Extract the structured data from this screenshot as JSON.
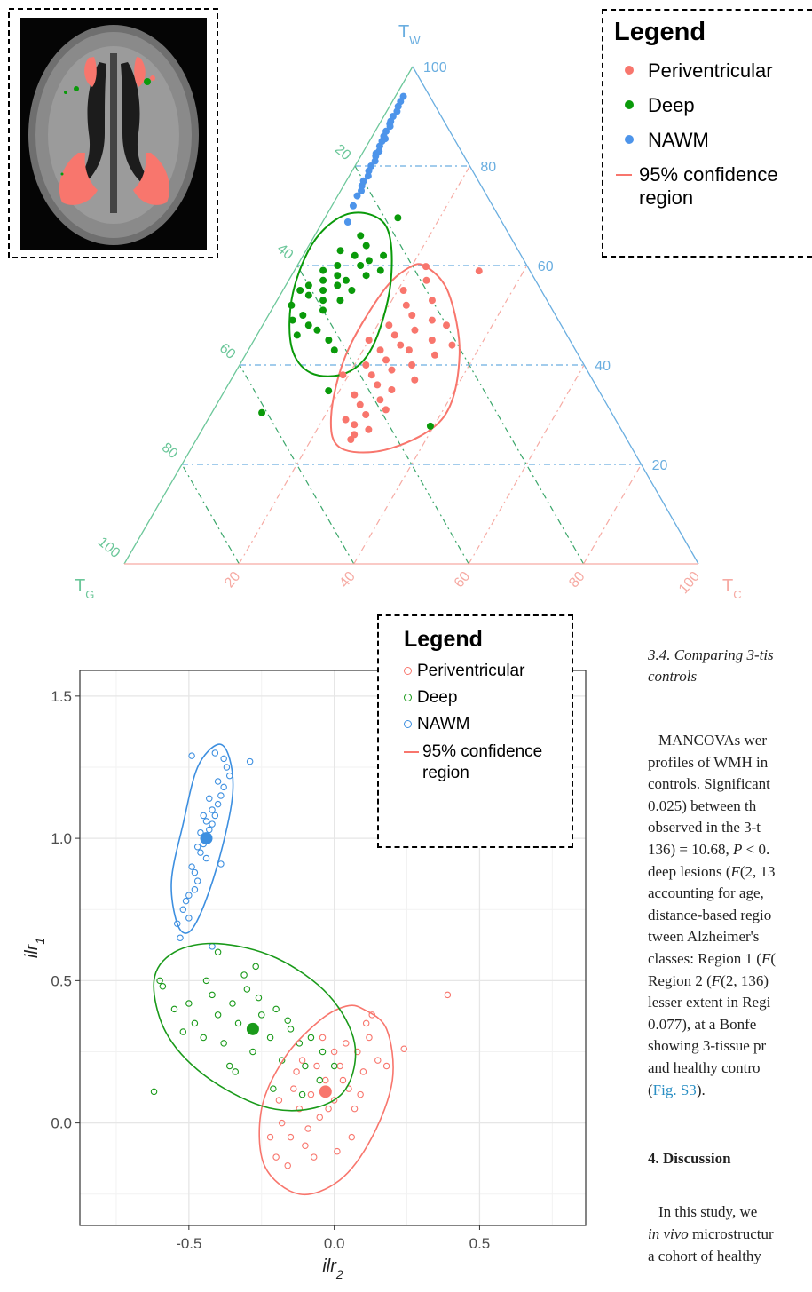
{
  "chart_data": [
    {
      "type": "ternary",
      "axes": [
        {
          "label": {
            "text": "T",
            "sub": "W"
          },
          "color": "#6aaee0",
          "ticks": [
            20,
            40,
            60,
            80,
            100
          ]
        },
        {
          "label": {
            "text": "T",
            "sub": "G"
          },
          "color": "#6cc79a",
          "ticks": [
            20,
            40,
            60,
            80,
            100
          ]
        },
        {
          "label": {
            "text": "T",
            "sub": "C"
          },
          "color": "#f6aaa3",
          "ticks": [
            20,
            40,
            60,
            80,
            100
          ]
        }
      ],
      "legend": {
        "title": "Legend",
        "region_label": "95% confidence region"
      },
      "series": [
        {
          "name": "Periventricular",
          "color": "#f8766d",
          "tw": [
            59.8,
            57,
            55,
            53,
            52,
            50,
            49,
            48,
            47,
            46,
            45,
            45,
            44,
            43,
            43,
            42,
            41,
            40,
            40,
            39,
            38,
            37,
            36,
            35,
            34,
            33,
            32,
            31,
            30,
            29,
            28,
            27,
            26,
            25,
            58.9,
            48,
            38,
            44
          ],
          "tc": [
            22.5,
            24,
            21,
            27,
            23,
            25,
            29,
            22,
            27,
            24,
            31,
            20,
            26,
            28,
            23,
            33,
            25,
            22,
            30,
            27,
            24,
            32,
            26,
            29,
            23,
            28,
            25,
            30,
            27,
            24,
            26,
            29,
            27,
            26.9,
            32.2,
            32,
            19,
            35
          ],
          "confidence_region": {
            "tw": [
              59.8,
              54.5,
              42,
              29.5,
              23.2,
              23.2,
              29.5,
              42,
              54.5,
              59.5
            ],
            "tc": [
              22.5,
              29.1,
              37.3,
              40.8,
              34.7,
              26.2,
              21.2,
              17.5,
              17.5,
              19.6
            ]
          }
        },
        {
          "name": "Deep",
          "color": "#0a9a0a",
          "tw": [
            69.6,
            66,
            64,
            63,
            62,
            61,
            60,
            60,
            59,
            58,
            58,
            57,
            57,
            56,
            56,
            55,
            55,
            54,
            53,
            53,
            52,
            51,
            50,
            49,
            48,
            47,
            46,
            45,
            43,
            34.8,
            30.4,
            27.7,
            62,
            59,
            55
          ],
          "tc": [
            12.7,
            8,
            10,
            6,
            9,
            12,
            7,
            11,
            5,
            8,
            13,
            6,
            10,
            4,
            9,
            7,
            12,
            5,
            8,
            11,
            3,
            9,
            6,
            4.7,
            8,
            10,
            7,
            13,
            15,
            18.1,
            8.7,
            39.4,
            14,
            15,
            3
          ],
          "confidence_region": {
            "tw": [
              70.5,
              67.9,
              56.3,
              43.8,
              38.4,
              38.4,
              43.8,
              54.5,
              65.2
            ],
            "tc": [
              4,
              11.5,
              18.1,
              21.3,
              19.4,
              13.2,
              7.1,
              2,
              0.5
            ]
          }
        },
        {
          "name": "NAWM",
          "color": "#4d94ea",
          "tw": [
            72,
            74,
            75,
            76,
            77,
            78,
            79,
            80,
            81,
            82,
            82.5,
            83,
            84,
            85,
            85.5,
            86,
            87,
            88,
            88.5,
            89,
            90,
            91,
            92,
            93,
            94,
            68.75
          ],
          "tc": [
            3.7,
            3.4,
            3.6,
            3.2,
            3,
            3.3,
            2.9,
            2.8,
            3,
            2.6,
            2.4,
            2.7,
            2.3,
            2.2,
            2.5,
            2,
            1.9,
            2.1,
            1.8,
            1.7,
            1.6,
            1.8,
            1.5,
            1.4,
            1.4,
            4.4
          ]
        }
      ]
    },
    {
      "type": "scatter",
      "xlabel": {
        "text": "ilr",
        "sub": "2"
      },
      "ylabel": {
        "text": "ilr",
        "sub": "1"
      },
      "xlim": [
        -0.875,
        0.865
      ],
      "ylim": [
        -0.36,
        1.59
      ],
      "xticks": [
        -0.5,
        {
          "value": 0,
          "label": "0.0"
        },
        0.5
      ],
      "yticks": [
        {
          "value": 0,
          "label": "0.0"
        },
        0.5,
        {
          "value": 1,
          "label": "1.0"
        },
        1.5
      ],
      "minor_xticks": [
        -0.75,
        -0.25,
        0.25,
        0.75
      ],
      "minor_yticks": [
        -0.25,
        0.25,
        0.75,
        1.25
      ],
      "grid": true,
      "legend": {
        "title": "Legend",
        "region_label": "95% confidence region"
      },
      "series": [
        {
          "name": "Periventricular",
          "color": "#f8766d",
          "x": [
            -0.2,
            -0.15,
            -0.12,
            -0.1,
            -0.08,
            -0.05,
            -0.03,
            0,
            0.02,
            0.05,
            0.08,
            0.1,
            0.12,
            0.15,
            -0.18,
            -0.14,
            -0.09,
            -0.06,
            -0.02,
            0.01,
            0.04,
            0.07,
            0.11,
            -0.22,
            -0.16,
            -0.11,
            -0.04,
            0.03,
            0.09,
            0.13,
            0.18,
            0.24,
            0.39,
            -0.19,
            -0.07,
            0.06,
            -0.13,
            0
          ],
          "y": [
            -0.12,
            -0.05,
            0.05,
            -0.08,
            0.1,
            0.02,
            0.15,
            0.08,
            0.2,
            0.12,
            0.25,
            0.18,
            0.3,
            0.22,
            0,
            0.12,
            -0.02,
            0.2,
            0.05,
            -0.1,
            0.28,
            0.05,
            0.35,
            -0.05,
            -0.15,
            0.22,
            0.3,
            0.15,
            0.1,
            0.38,
            0.2,
            0.26,
            0.45,
            0.08,
            -0.12,
            -0.05,
            0.18,
            0.25
          ],
          "mean": {
            "x": -0.03,
            "y": 0.11
          },
          "confidence_region": {
            "x": [
              0.1,
              0.18,
              0.2,
              0.13,
              0.02,
              -0.12,
              -0.24,
              -0.25,
              -0.17,
              -0.05,
              0.04
            ],
            "y": [
              0.4,
              0.33,
              0.15,
              -0.05,
              -0.2,
              -0.25,
              -0.15,
              0.05,
              0.23,
              0.36,
              0.41
            ]
          }
        },
        {
          "name": "Deep",
          "color": "#1a9a1a",
          "x": [
            -0.6,
            -0.59,
            -0.55,
            -0.5,
            -0.48,
            -0.45,
            -0.42,
            -0.4,
            -0.38,
            -0.35,
            -0.33,
            -0.3,
            -0.28,
            -0.25,
            -0.22,
            -0.2,
            -0.18,
            -0.15,
            -0.12,
            -0.1,
            -0.08,
            -0.05,
            -0.52,
            -0.44,
            -0.36,
            -0.31,
            -0.26,
            -0.21,
            -0.16,
            -0.11,
            -0.62,
            -0.27,
            -0.4,
            -0.04,
            0,
            -0.34
          ],
          "y": [
            0.5,
            0.48,
            0.4,
            0.42,
            0.35,
            0.3,
            0.45,
            0.38,
            0.28,
            0.42,
            0.35,
            0.47,
            0.25,
            0.38,
            0.3,
            0.4,
            0.22,
            0.33,
            0.28,
            0.2,
            0.3,
            0.15,
            0.32,
            0.5,
            0.2,
            0.52,
            0.44,
            0.12,
            0.36,
            0.1,
            0.11,
            0.55,
            0.6,
            0.25,
            0.2,
            0.18
          ],
          "mean": {
            "x": -0.28,
            "y": 0.33
          },
          "confidence_region": {
            "x": [
              -0.62,
              -0.55,
              -0.4,
              -0.2,
              -0.02,
              0.07,
              0.04,
              -0.08,
              -0.25,
              -0.45,
              -0.58
            ],
            "y": [
              0.5,
              0.6,
              0.63,
              0.58,
              0.45,
              0.28,
              0.12,
              0.05,
              0.06,
              0.17,
              0.32
            ]
          }
        },
        {
          "name": "NAWM",
          "color": "#3d8fe0",
          "x": [
            -0.5,
            -0.48,
            -0.46,
            -0.44,
            -0.42,
            -0.4,
            -0.38,
            -0.52,
            -0.49,
            -0.45,
            -0.43,
            -0.41,
            -0.39,
            -0.47,
            -0.44,
            -0.42,
            -0.5,
            -0.46,
            -0.4,
            -0.37,
            -0.54,
            -0.48,
            -0.44,
            -0.38,
            -0.36,
            -0.51,
            -0.47,
            -0.43,
            -0.41,
            -0.45,
            -0.29,
            -0.49,
            -0.42,
            -0.53,
            -0.39
          ],
          "y": [
            0.8,
            0.88,
            0.95,
            1,
            1.05,
            1.12,
            1.18,
            0.75,
            0.9,
            0.98,
            1.03,
            1.08,
            1.15,
            0.85,
            0.93,
            1.1,
            0.72,
            1.02,
            1.2,
            1.25,
            0.7,
            0.82,
            1.06,
            1.28,
            1.22,
            0.78,
            0.97,
            1.14,
            1.3,
            1.08,
            1.27,
            1.29,
            0.62,
            0.65,
            0.91
          ],
          "mean": {
            "x": -0.44,
            "y": 1
          },
          "confidence_region": {
            "x": [
              -0.4,
              -0.36,
              -0.35,
              -0.39,
              -0.45,
              -0.5,
              -0.54,
              -0.56,
              -0.52,
              -0.47
            ],
            "y": [
              1.33,
              1.28,
              1.15,
              0.95,
              0.76,
              0.67,
              0.7,
              0.85,
              1.05,
              1.25
            ]
          }
        }
      ]
    }
  ],
  "text": {
    "section_title": [
      "3.4.  Comparing 3-tis",
      "controls"
    ],
    "paragraph": [
      [
        "MANCOVAs wer"
      ],
      [
        "profiles of WMH in"
      ],
      [
        "controls. Significant"
      ],
      [
        "0.025) between th"
      ],
      [
        "observed in the 3-t"
      ],
      [
        "136) = 10.68, ",
        {
          "text": "P",
          "style": "italic"
        },
        " < 0."
      ],
      [
        "deep lesions (",
        {
          "text": "F",
          "style": "italic"
        },
        "(2, 13"
      ],
      [
        "accounting for age,"
      ],
      [
        "distance-based regio"
      ],
      [
        "tween Alzheimer's"
      ],
      [
        "classes: Region 1 (",
        {
          "text": "F",
          "style": "italic"
        },
        "("
      ],
      [
        "Region 2 (",
        {
          "text": "F",
          "style": "italic"
        },
        "(2, 136)"
      ],
      [
        "lesser extent in Regi"
      ],
      [
        "0.077), at a Bonfe"
      ],
      [
        "showing 3-tissue pr"
      ],
      [
        "and healthy contro"
      ],
      [
        "(",
        {
          "text": "Fig. S3",
          "style": "link"
        },
        ")."
      ]
    ],
    "discussion_heading": "4.  Discussion",
    "discussion": [
      [
        "In this study, we"
      ],
      [
        {
          "text": "in vivo",
          "style": "italic"
        },
        " microstructur"
      ],
      [
        "a cohort of healthy"
      ]
    ]
  }
}
